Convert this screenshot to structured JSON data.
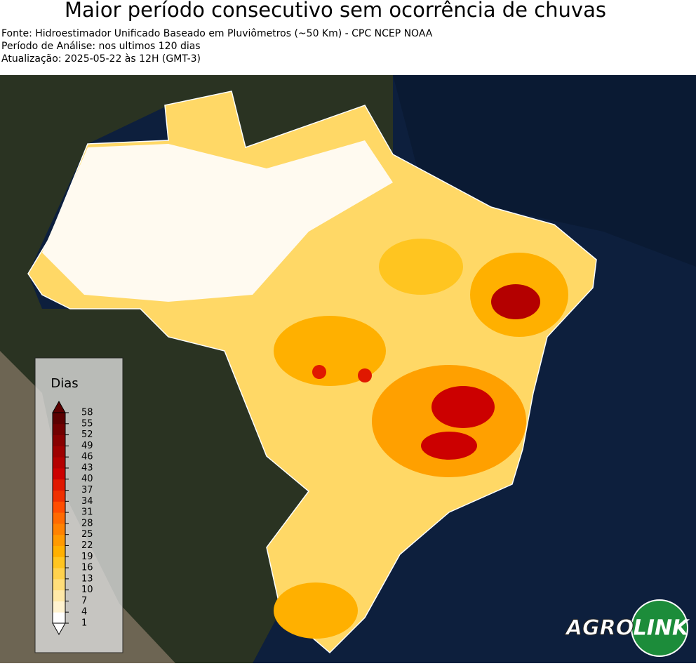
{
  "header": {
    "title": "Maior período consecutivo sem ocorrência de chuvas",
    "lines": [
      "Fonte: Hidroestimador Unificado Baseado em Pluviômetros (~50 Km) - CPC NCEP NOAA",
      "Período de Análise: nos ultimos 120 dias",
      "Atualização: 2025-05-22 às 12H (GMT-3)"
    ]
  },
  "legend": {
    "title": "Dias",
    "ticks": [
      1,
      4,
      7,
      10,
      13,
      16,
      19,
      22,
      25,
      28,
      31,
      34,
      37,
      40,
      43,
      46,
      49,
      52,
      55,
      58
    ],
    "colors": [
      "#ffffff",
      "#fff3d0",
      "#ffe9a8",
      "#ffde7a",
      "#ffd24d",
      "#ffc520",
      "#ffb000",
      "#ff9a00",
      "#ff8200",
      "#ff6a00",
      "#ff4d00",
      "#f03000",
      "#e01800",
      "#cc0000",
      "#b40000",
      "#9e0000",
      "#880000",
      "#720000",
      "#5c0000"
    ]
  },
  "logo": {
    "part1": "AGRO",
    "part2": "LINK"
  }
}
